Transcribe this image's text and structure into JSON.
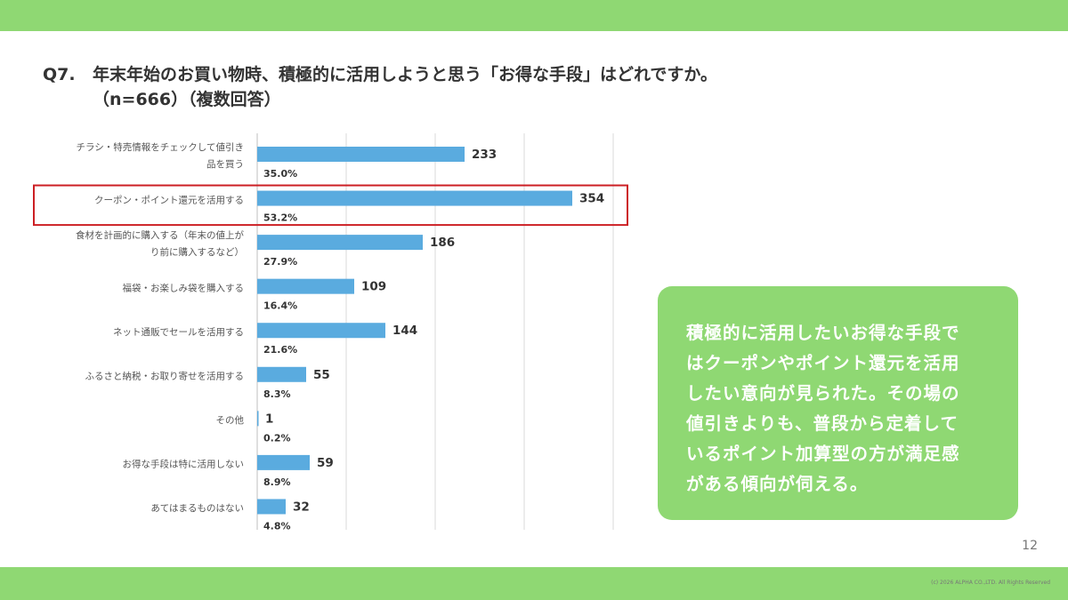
{
  "header": {
    "question_number": "Q7.",
    "title_line1": "年末年始のお買い物時、積極的に活用しようと思う「お得な手段」はどれですか。",
    "title_line2": "（n=666）（複数回答）"
  },
  "colors": {
    "band": "#8fd873",
    "bar": "#5aabdf",
    "highlight": "#cc1f24",
    "grid": "#d9d9d9"
  },
  "chart_data": {
    "type": "bar",
    "orientation": "horizontal",
    "categories": [
      [
        "チラシ・特売情報をチェックして値引き",
        "品を買う"
      ],
      [
        "クーポン・ポイント還元を活用する"
      ],
      [
        "食材を計画的に購入する（年末の値上が",
        "り前に購入するなど）"
      ],
      [
        "福袋・お楽しみ袋を購入する"
      ],
      [
        "ネット通販でセールを活用する"
      ],
      [
        "ふるさと納税・お取り寄せを活用する"
      ],
      [
        "その他"
      ],
      [
        "お得な手段は特に活用しない"
      ],
      [
        "あてはまるものはない"
      ]
    ],
    "values": [
      233,
      354,
      186,
      109,
      144,
      55,
      1,
      59,
      32
    ],
    "value_labels": [
      "233",
      "354",
      "186",
      "109",
      "144",
      "55",
      "1",
      "59",
      "32"
    ],
    "percent_labels": [
      "35.0%",
      "53.2%",
      "27.9%",
      "16.4%",
      "21.6%",
      "8.3%",
      "0.2%",
      "8.9%",
      "4.8%"
    ],
    "xlim": [
      0,
      400
    ],
    "grid": true,
    "highlighted_index": 1
  },
  "callout": {
    "lines": [
      "積極的に活用したいお得な手段で",
      "はクーポンやポイント還元を活用",
      "したい意向が見られた。その場の",
      "値引きよりも、普段から定着して",
      "いるポイント加算型の方が満足感",
      "がある傾向が伺える。"
    ]
  },
  "footer": {
    "page_number": "12",
    "copyright": "(c) 2026 ALPHA CO.,LTD. All Rights Reserved"
  }
}
